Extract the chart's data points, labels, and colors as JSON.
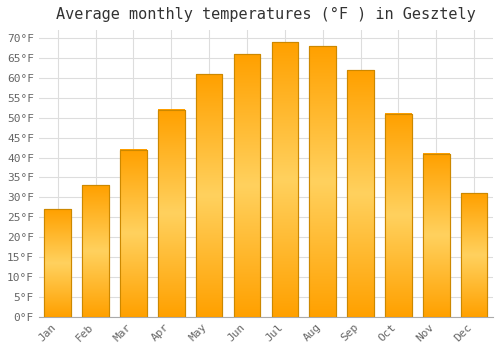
{
  "title": "Average monthly temperatures (°F ) in Gesztely",
  "months": [
    "Jan",
    "Feb",
    "Mar",
    "Apr",
    "May",
    "Jun",
    "Jul",
    "Aug",
    "Sep",
    "Oct",
    "Nov",
    "Dec"
  ],
  "values": [
    27,
    33,
    42,
    52,
    61,
    66,
    69,
    68,
    62,
    51,
    41,
    31
  ],
  "bar_color_center": "#FFD060",
  "bar_color_edge": "#FFA000",
  "bar_border_color": "#CC8800",
  "background_color": "#FFFFFF",
  "plot_bg_color": "#FFFFFF",
  "grid_color": "#DDDDDD",
  "ylim": [
    0,
    72
  ],
  "yticks": [
    0,
    5,
    10,
    15,
    20,
    25,
    30,
    35,
    40,
    45,
    50,
    55,
    60,
    65,
    70
  ],
  "title_fontsize": 11,
  "tick_fontsize": 8,
  "font_family": "monospace",
  "tick_color": "#666666",
  "title_color": "#333333"
}
